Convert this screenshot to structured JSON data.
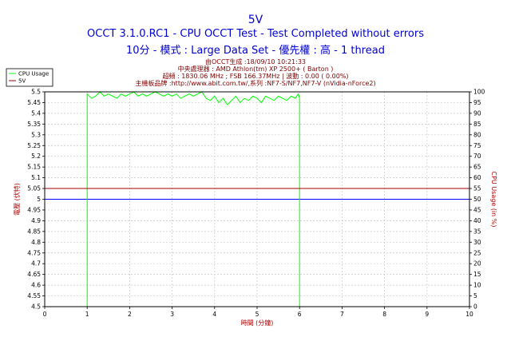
{
  "header": {
    "title": "5V",
    "subtitle": "OCCT 3.1.0.RC1 - CPU OCCT Test - Test Completed without errors",
    "subtitle2": "10分 - 模式 : Large Data Set - 優先權 : 高 - 1 thread",
    "info_generated": "由OCCT生成 :18/09/10 10:21:33",
    "info_cpu": "中央處理器 : AMD Athlon(tm) XP 2500+ ( Barton )",
    "info_freq": "超頻 : 1830.06 MHz ; FSB 166.37MHz | 波動 : 0.00 ( 0.00%)",
    "info_board": "主機板品牌 :http://www.abit.com.tw/,系列 :NF7-S/NF7,NF7-V (nVidia-nForce2)"
  },
  "colors": {
    "title": "#0000d0",
    "info": "#800000",
    "cpu_usage_line": "#00ff00",
    "voltage_line": "#a00000",
    "reference_line": "#0000ff",
    "grid": "#c8c8c8"
  },
  "chart_data": {
    "type": "line",
    "title": "5V",
    "xlabel": "時間 (分鐘)",
    "ylabel": "電壓 (伏特)",
    "y2label": "CPU Usage (in %)",
    "xlim": [
      0,
      10
    ],
    "ylim": [
      4.5,
      5.5
    ],
    "y2lim": [
      0,
      100
    ],
    "x_ticks": [
      "0",
      "1",
      "2",
      "3",
      "4",
      "5",
      "6",
      "7",
      "8",
      "9",
      "10"
    ],
    "y_ticks": [
      "4.5",
      "4.55",
      "4.6",
      "4.65",
      "4.7",
      "4.75",
      "4.8",
      "4.85",
      "4.9",
      "4.95",
      "5",
      "5.05",
      "5.1",
      "5.15",
      "5.2",
      "5.25",
      "5.3",
      "5.35",
      "5.4",
      "5.45",
      "5.5"
    ],
    "y2_ticks": [
      "0",
      "5",
      "10",
      "15",
      "20",
      "25",
      "30",
      "35",
      "40",
      "45",
      "50",
      "55",
      "60",
      "65",
      "70",
      "75",
      "80",
      "85",
      "90",
      "95",
      "100"
    ],
    "grid": true,
    "legend": {
      "placement": "top-left",
      "entries": [
        "CPU Usage",
        "5V"
      ]
    },
    "series": [
      {
        "name": "CPU Usage",
        "axis": "right",
        "x": [
          0,
          0.95,
          1.0,
          1.0,
          1.1,
          1.2,
          1.3,
          1.4,
          1.5,
          1.6,
          1.7,
          1.8,
          1.9,
          2.0,
          2.1,
          2.2,
          2.3,
          2.4,
          2.5,
          2.6,
          2.7,
          2.8,
          2.9,
          3.0,
          3.1,
          3.2,
          3.3,
          3.4,
          3.5,
          3.6,
          3.7,
          3.8,
          3.9,
          4.0,
          4.1,
          4.2,
          4.3,
          4.4,
          4.5,
          4.6,
          4.7,
          4.8,
          4.9,
          5.0,
          5.1,
          5.2,
          5.3,
          5.4,
          5.5,
          5.6,
          5.7,
          5.8,
          5.9,
          5.97,
          6.0,
          6.0,
          6.1,
          10
        ],
        "y": [
          0,
          0,
          0,
          99,
          97,
          98,
          100,
          98,
          99,
          98,
          97,
          99,
          98,
          99,
          100,
          98,
          99,
          98,
          99,
          100,
          99,
          98,
          99,
          98,
          99,
          97,
          98,
          99,
          98,
          99,
          100,
          97,
          96,
          98,
          95,
          97,
          94,
          96,
          98,
          95,
          97,
          96,
          98,
          97,
          95,
          98,
          97,
          96,
          98,
          97,
          96,
          98,
          97,
          99,
          97,
          0,
          0,
          0
        ]
      },
      {
        "name": "5V",
        "axis": "left",
        "x": [
          0,
          10
        ],
        "y": [
          5.05,
          5.05
        ]
      }
    ],
    "reference_lines": [
      {
        "axis": "left",
        "y": 5.0
      }
    ]
  }
}
